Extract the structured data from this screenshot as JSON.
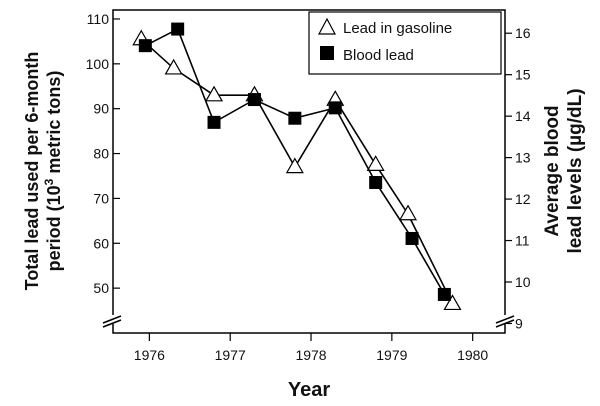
{
  "chart_data": {
    "type": "line",
    "x_axis": {
      "label": "Year",
      "range": [
        1975.55,
        1980.4
      ],
      "ticks": [
        1976,
        1977,
        1978,
        1979,
        1980
      ],
      "tick_labels": [
        "1976",
        "1977",
        "1978",
        "1979",
        "1980"
      ]
    },
    "y_left": {
      "label_line1": "Total lead used per 6-month",
      "label_line2_prefix": "period (10",
      "label_line2_sup": "3",
      "label_line2_suffix": " metric tons)",
      "range": [
        40,
        112
      ],
      "ticks": [
        50,
        60,
        70,
        80,
        90,
        100,
        110
      ],
      "tick_labels": [
        "50",
        "60",
        "70",
        "80",
        "90",
        "100",
        "110"
      ]
    },
    "y_right": {
      "label_line1": "Average blood",
      "label_line2": "lead levels (µg/dL)",
      "range": [
        8.77,
        16.56
      ],
      "ticks": [
        9,
        10,
        11,
        12,
        13,
        14,
        15,
        16
      ],
      "tick_labels": [
        "9",
        "10",
        "11",
        "12",
        "13",
        "14",
        "15",
        "16"
      ]
    },
    "axis_break": true,
    "grid": false,
    "legend": {
      "position": "top-right"
    },
    "series": [
      {
        "name": "Lead in gasoline",
        "axis": "left",
        "marker": "open-triangle",
        "x": [
          1975.9,
          1976.3,
          1976.8,
          1977.3,
          1977.8,
          1978.3,
          1978.8,
          1979.2,
          1979.75
        ],
        "y": [
          105.5,
          99,
          93,
          93,
          77,
          92,
          77.5,
          66.5,
          46.5
        ]
      },
      {
        "name": "Blood lead",
        "axis": "right",
        "marker": "filled-square",
        "x": [
          1975.95,
          1976.35,
          1976.8,
          1977.3,
          1977.8,
          1978.3,
          1978.8,
          1979.25,
          1979.65
        ],
        "y": [
          15.7,
          16.1,
          13.85,
          14.4,
          13.95,
          14.2,
          12.4,
          11.05,
          9.7
        ]
      }
    ]
  }
}
